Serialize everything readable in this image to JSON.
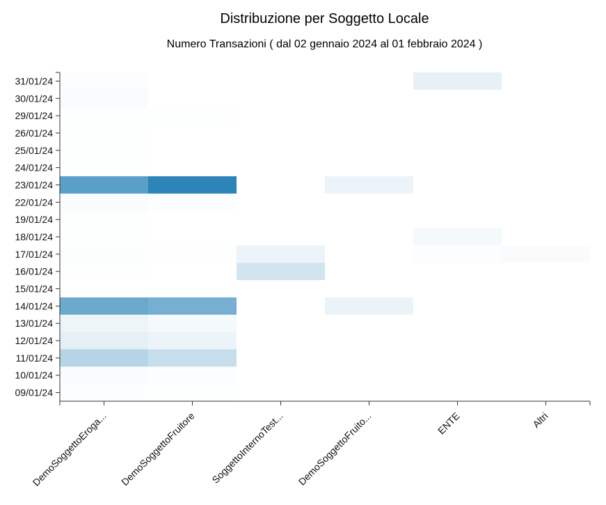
{
  "chart_data": {
    "type": "heatmap",
    "title": "Distribuzione per Soggetto Locale",
    "subtitle": "Numero Transazioni ( dal 02 gennaio 2024 al 01 febbraio 2024 )",
    "x_categories": [
      "DemoSoggettoEroga...",
      "DemoSoggettoFruitore",
      "SoggettoInternoTest...",
      "DemoSoggettoFruito...",
      "ENTE",
      "Altri"
    ],
    "y_categories": [
      "31/01/24",
      "30/01/24",
      "29/01/24",
      "26/01/24",
      "25/01/24",
      "24/01/24",
      "23/01/24",
      "22/01/24",
      "19/01/24",
      "18/01/24",
      "17/01/24",
      "16/01/24",
      "15/01/24",
      "14/01/24",
      "13/01/24",
      "12/01/24",
      "11/01/24",
      "10/01/24",
      "09/01/24"
    ],
    "values": [
      [
        0.02,
        0,
        0,
        0,
        0.12,
        0
      ],
      [
        0.03,
        0,
        0,
        0,
        0,
        0
      ],
      [
        0.01,
        0.01,
        0,
        0,
        0,
        0
      ],
      [
        0.01,
        0,
        0,
        0,
        0,
        0
      ],
      [
        0.01,
        0,
        0,
        0,
        0,
        0
      ],
      [
        0.01,
        0,
        0,
        0,
        0,
        0
      ],
      [
        0.78,
        1.0,
        0,
        0.09,
        0,
        0
      ],
      [
        0.03,
        0.02,
        0,
        0,
        0,
        0
      ],
      [
        0.01,
        0,
        0,
        0,
        0,
        0
      ],
      [
        0.01,
        0,
        0,
        0,
        0.05,
        0
      ],
      [
        0.02,
        0.01,
        0.09,
        0,
        0.02,
        0.03
      ],
      [
        0.01,
        0,
        0.22,
        0,
        0,
        0
      ],
      [
        0,
        0,
        0,
        0,
        0,
        0
      ],
      [
        0.7,
        0.65,
        0,
        0.1,
        0,
        0
      ],
      [
        0.08,
        0.05,
        0,
        0,
        0,
        0
      ],
      [
        0.13,
        0.09,
        0,
        0,
        0,
        0
      ],
      [
        0.35,
        0.27,
        0,
        0,
        0,
        0
      ],
      [
        0.03,
        0.02,
        0,
        0,
        0,
        0
      ],
      [
        0.02,
        0.01,
        0,
        0,
        0,
        0
      ]
    ],
    "color_low": "#ffffff",
    "color_high": "#2c84b8"
  }
}
